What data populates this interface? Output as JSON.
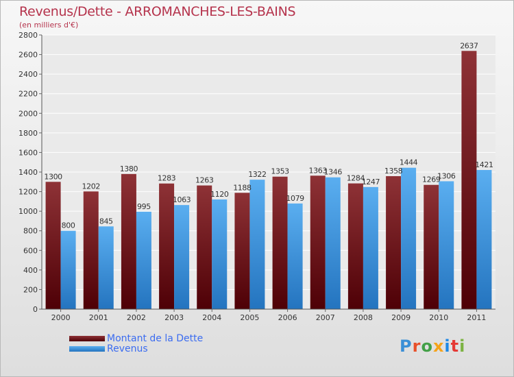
{
  "title": "Revenus/Dette - ARROMANCHES-LES-BAINS",
  "subtitle": "(en milliers d'€)",
  "logo": {
    "text": "Proxiti",
    "colors": [
      "#3a8fd6",
      "#e8502a",
      "#43a047",
      "#f5a31a",
      "#1e88e5",
      "#e53935",
      "#7cb342"
    ]
  },
  "chart_data": {
    "type": "bar",
    "categories": [
      "2000",
      "2001",
      "2002",
      "2003",
      "2004",
      "2005",
      "2006",
      "2007",
      "2008",
      "2009",
      "2010",
      "2011"
    ],
    "series": [
      {
        "name": "Montant de la Dette",
        "color": "#6e0f17",
        "values": [
          1300,
          1202,
          1380,
          1283,
          1263,
          1188,
          1353,
          1363,
          1284,
          1358,
          1269,
          2637
        ]
      },
      {
        "name": "Revenus",
        "color": "#3d9be4",
        "values": [
          800,
          845,
          995,
          1063,
          1120,
          1322,
          1079,
          1346,
          1247,
          1444,
          1306,
          1421
        ]
      }
    ],
    "ylim": [
      0,
      2800
    ],
    "yticks": [
      0,
      200,
      400,
      600,
      800,
      1000,
      1200,
      1400,
      1600,
      1800,
      2000,
      2200,
      2400,
      2600,
      2800
    ],
    "grid": true,
    "legend_position": "bottom-left"
  }
}
